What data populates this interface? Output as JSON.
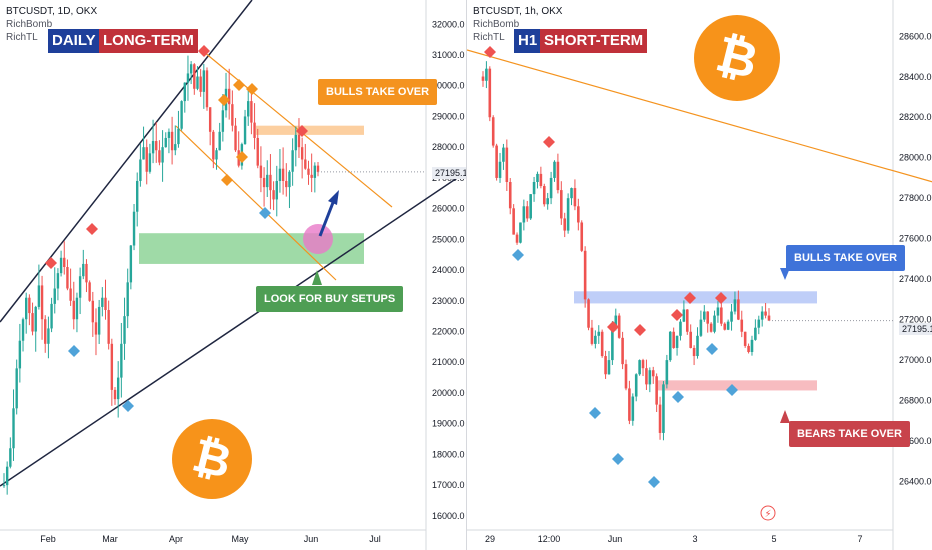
{
  "chart_data": [
    {
      "type": "candlestick",
      "panel": "left",
      "symbol": "BTCUSDT, 1D, OKX",
      "indicators": [
        "RichBomb",
        "RichTL"
      ],
      "label_a": "DAILY",
      "label_b": "LONG-TERM",
      "ylim": [
        15800,
        32400
      ],
      "y_ticks": [
        "16000.0",
        "17000.0",
        "18000.0",
        "19000.0",
        "20000.0",
        "21000.0",
        "22000.0",
        "23000.0",
        "24000.0",
        "25000.0",
        "26000.0",
        "27000.0",
        "28000.0",
        "29000.0",
        "30000.0",
        "31000.0",
        "32000.0"
      ],
      "x_ticks": [
        "Feb",
        "Mar",
        "Apr",
        "May",
        "Jun",
        "Jul"
      ],
      "last_price": "27195.1",
      "annotations": {
        "bulls": "BULLS TAKE OVER",
        "buy": "LOOK FOR BUY SETUPS"
      },
      "zones": [
        {
          "name": "support-zone",
          "from": 24200,
          "to": 25200,
          "color": "#7fce8a"
        },
        {
          "name": "resistance-zone",
          "from": 28400,
          "to": 28700,
          "color": "#fbbf80"
        }
      ],
      "close_path": [
        17000,
        17600,
        18200,
        19500,
        20800,
        21700,
        22400,
        23100,
        22600,
        22000,
        22800,
        23500,
        22400,
        21600,
        22100,
        22900,
        23400,
        23900,
        24400,
        24100,
        23400,
        23000,
        22400,
        23100,
        23800,
        24200,
        23600,
        23000,
        22300,
        21900,
        22800,
        23100,
        22700,
        21600,
        20100,
        19800,
        20500,
        21600,
        22500,
        23600,
        24800,
        25900,
        26900,
        27600,
        28000,
        27200,
        27800,
        28200,
        27900,
        27500,
        28000,
        28300,
        28500,
        27900,
        28100,
        28600,
        29500,
        30100,
        30400,
        30700,
        29900,
        30300,
        29800,
        30500,
        29300,
        28500,
        27600,
        27900,
        28500,
        29200,
        29900,
        29400,
        28700,
        27900,
        27400,
        28100,
        29000,
        29500,
        28800,
        28300,
        27400,
        27000,
        26700,
        27100,
        26600,
        26300,
        26900,
        27300,
        26900,
        26700,
        27200,
        27900,
        28400,
        28000,
        27600,
        27300,
        27100,
        27000,
        27400,
        27195
      ]
    },
    {
      "type": "candlestick",
      "panel": "right",
      "symbol": "BTCUSDT, 1h, OKX",
      "indicators": [
        "RichBomb",
        "RichTL"
      ],
      "label_a": "H1",
      "label_b": "SHORT-TERM",
      "ylim": [
        26200,
        28720
      ],
      "y_ticks": [
        "26400.0",
        "26600.0",
        "26800.0",
        "27000.0",
        "27200.0",
        "27400.0",
        "27600.0",
        "27800.0",
        "28000.0",
        "28200.0",
        "28400.0",
        "28600.0"
      ],
      "x_ticks": [
        "29",
        "12:00",
        "Jun",
        "3",
        "5",
        "7"
      ],
      "last_price": "27195.1",
      "annotations": {
        "bulls": "BULLS TAKE OVER",
        "bears": "BEARS TAKE OVER"
      },
      "zones": [
        {
          "name": "resistance-zone",
          "from": 27280,
          "to": 27340,
          "color": "#a9bdf5"
        },
        {
          "name": "support-zone",
          "from": 26850,
          "to": 26900,
          "color": "#f4a6ab"
        }
      ],
      "close_path": [
        28380,
        28440,
        28200,
        28060,
        27900,
        27980,
        28050,
        27880,
        27750,
        27620,
        27580,
        27680,
        27760,
        27700,
        27820,
        27880,
        27920,
        27860,
        27770,
        27800,
        27900,
        27980,
        27840,
        27700,
        27640,
        27800,
        27850,
        27760,
        27680,
        27540,
        27300,
        27160,
        27080,
        27120,
        27140,
        27020,
        26930,
        27000,
        27160,
        27220,
        27110,
        26980,
        26860,
        26700,
        26820,
        26930,
        27000,
        26960,
        26880,
        26950,
        26920,
        26780,
        26640,
        26880,
        27000,
        27140,
        27060,
        27120,
        27190,
        27250,
        27140,
        27060,
        27020,
        27120,
        27200,
        27240,
        27180,
        27140,
        27220,
        27260,
        27180,
        27150,
        27190,
        27240,
        27300,
        27200,
        27140,
        27070,
        27040,
        27100,
        27160,
        27200,
        27240,
        27220,
        27195
      ]
    }
  ]
}
